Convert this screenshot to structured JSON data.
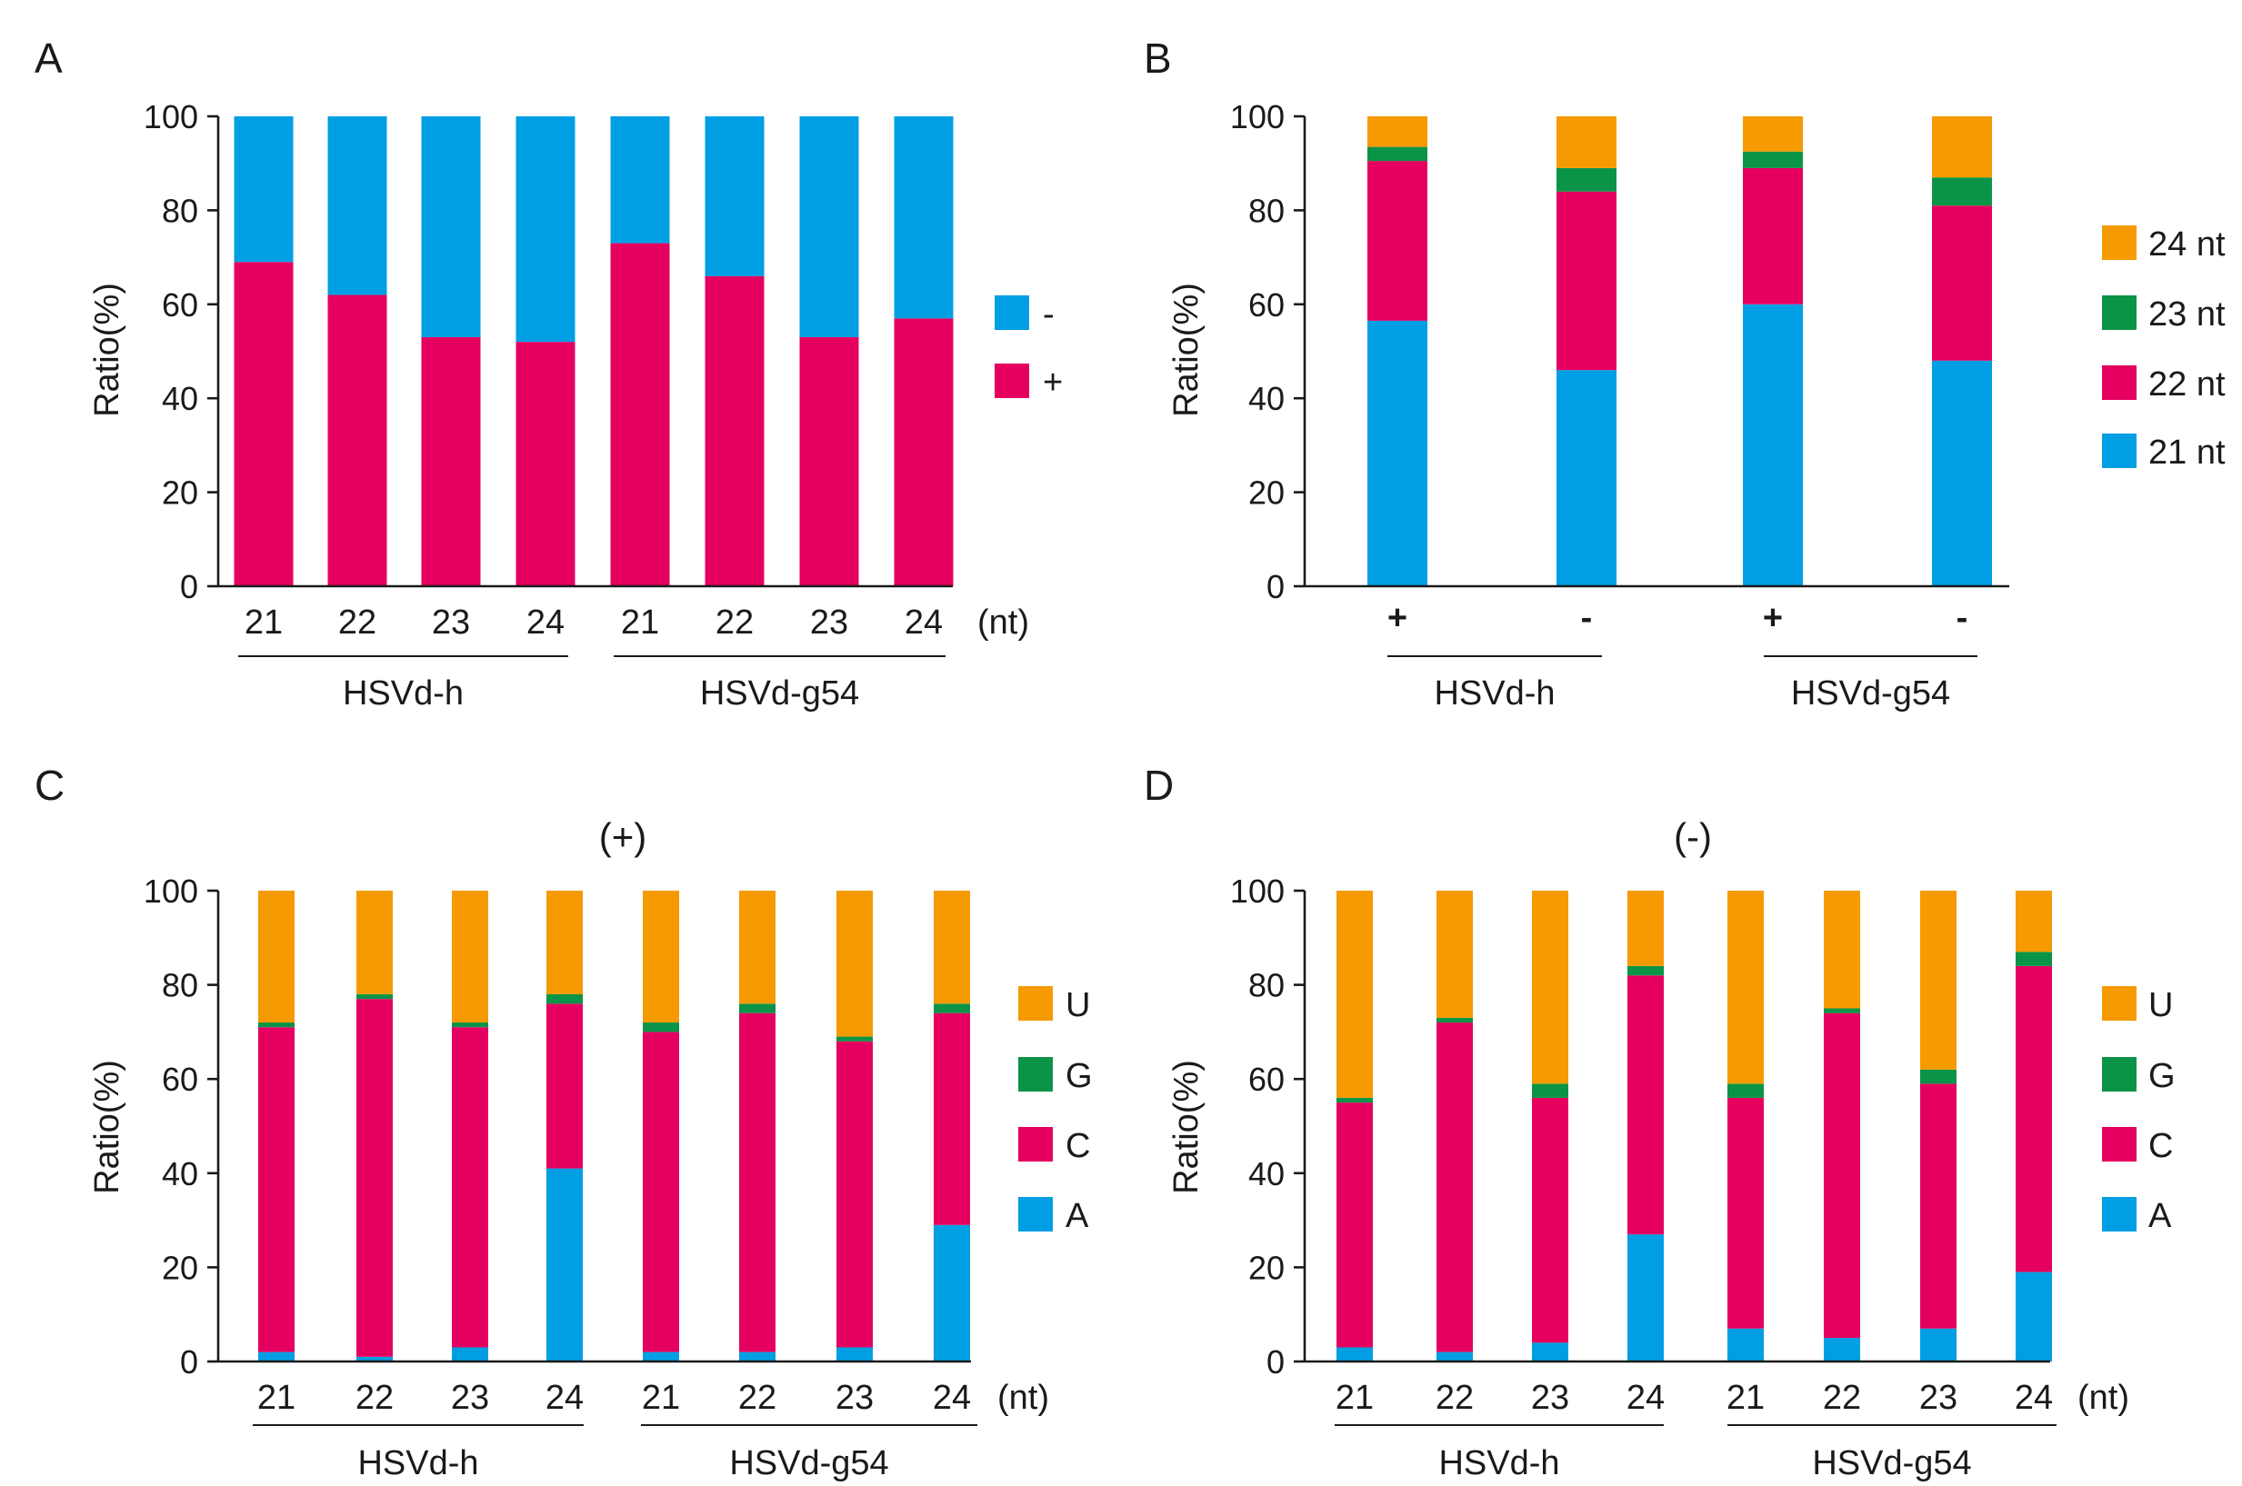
{
  "colors": {
    "orange": "#f59a00",
    "green": "#0b9447",
    "magenta": "#e5005f",
    "blue": "#009fe3"
  },
  "chart_data": [
    {
      "panel": "A",
      "type": "bar",
      "stacked": true,
      "ylabel": "Ratio(%)",
      "ylim": [
        0,
        100
      ],
      "yticks": [
        "0",
        "20",
        "40",
        "60",
        "80",
        "100"
      ],
      "categories": [
        "21",
        "22",
        "23",
        "24",
        "21",
        "22",
        "23",
        "24"
      ],
      "unit_label": "(nt)",
      "groups": [
        "HSVd-h",
        "HSVd-g54"
      ],
      "series": [
        {
          "name": "+",
          "color": "#e5005f",
          "values": [
            69,
            62,
            53,
            52,
            73,
            66,
            53,
            57
          ]
        },
        {
          "name": "-",
          "color": "#009fe3",
          "values": [
            31,
            38,
            47,
            48,
            27,
            34,
            47,
            43
          ]
        }
      ],
      "legend": [
        "-",
        "+"
      ],
      "legend_colors": [
        "#009fe3",
        "#e5005f"
      ]
    },
    {
      "panel": "B",
      "type": "bar",
      "stacked": true,
      "ylabel": "Ratio(%)",
      "ylim": [
        0,
        100
      ],
      "yticks": [
        "0",
        "20",
        "40",
        "60",
        "80",
        "100"
      ],
      "categories": [
        "+",
        "-",
        "+",
        "-"
      ],
      "groups": [
        "HSVd-h",
        "HSVd-g54"
      ],
      "series": [
        {
          "name": "21 nt",
          "color": "#009fe3",
          "values": [
            56.5,
            46,
            60,
            48
          ]
        },
        {
          "name": "22 nt",
          "color": "#e5005f",
          "values": [
            34,
            38,
            29,
            33
          ]
        },
        {
          "name": "23 nt",
          "color": "#0b9447",
          "values": [
            3,
            5,
            3.5,
            6
          ]
        },
        {
          "name": "24 nt",
          "color": "#f59a00",
          "values": [
            6.5,
            11,
            7.5,
            13
          ]
        }
      ],
      "legend": [
        "24 nt",
        "23 nt",
        "22 nt",
        "21 nt"
      ],
      "legend_colors": [
        "#f59a00",
        "#0b9447",
        "#e5005f",
        "#009fe3"
      ]
    },
    {
      "panel": "C",
      "type": "bar",
      "stacked": true,
      "title": "(+)",
      "ylabel": "Ratio(%)",
      "ylim": [
        0,
        100
      ],
      "yticks": [
        "0",
        "20",
        "40",
        "60",
        "80",
        "100"
      ],
      "categories": [
        "21",
        "22",
        "23",
        "24",
        "21",
        "22",
        "23",
        "24"
      ],
      "unit_label": "(nt)",
      "groups": [
        "HSVd-h",
        "HSVd-g54"
      ],
      "series": [
        {
          "name": "A",
          "color": "#009fe3",
          "values": [
            2,
            1,
            3,
            41,
            2,
            2,
            3,
            29
          ]
        },
        {
          "name": "C",
          "color": "#e5005f",
          "values": [
            69,
            76,
            68,
            35,
            68,
            72,
            65,
            45
          ]
        },
        {
          "name": "G",
          "color": "#0b9447",
          "values": [
            1,
            1,
            1,
            2,
            2,
            2,
            1,
            2
          ]
        },
        {
          "name": "U",
          "color": "#f59a00",
          "values": [
            28,
            22,
            28,
            22,
            28,
            24,
            31,
            24
          ]
        }
      ],
      "legend": [
        "U",
        "G",
        "C",
        "A"
      ],
      "legend_colors": [
        "#f59a00",
        "#0b9447",
        "#e5005f",
        "#009fe3"
      ]
    },
    {
      "panel": "D",
      "type": "bar",
      "stacked": true,
      "title": "(-)",
      "ylabel": "Ratio(%)",
      "ylim": [
        0,
        100
      ],
      "yticks": [
        "0",
        "20",
        "40",
        "60",
        "80",
        "100"
      ],
      "categories": [
        "21",
        "22",
        "23",
        "24",
        "21",
        "22",
        "23",
        "24"
      ],
      "unit_label": "(nt)",
      "groups": [
        "HSVd-h",
        "HSVd-g54"
      ],
      "series": [
        {
          "name": "A",
          "color": "#009fe3",
          "values": [
            3,
            2,
            4,
            27,
            7,
            5,
            7,
            19
          ]
        },
        {
          "name": "C",
          "color": "#e5005f",
          "values": [
            52,
            70,
            52,
            55,
            49,
            69,
            52,
            65
          ]
        },
        {
          "name": "G",
          "color": "#0b9447",
          "values": [
            1,
            1,
            3,
            2,
            3,
            1,
            3,
            3
          ]
        },
        {
          "name": "U",
          "color": "#f59a00",
          "values": [
            44,
            27,
            41,
            16,
            41,
            25,
            38,
            13
          ]
        }
      ],
      "legend": [
        "U",
        "G",
        "C",
        "A"
      ],
      "legend_colors": [
        "#f59a00",
        "#0b9447",
        "#e5005f",
        "#009fe3"
      ]
    }
  ]
}
